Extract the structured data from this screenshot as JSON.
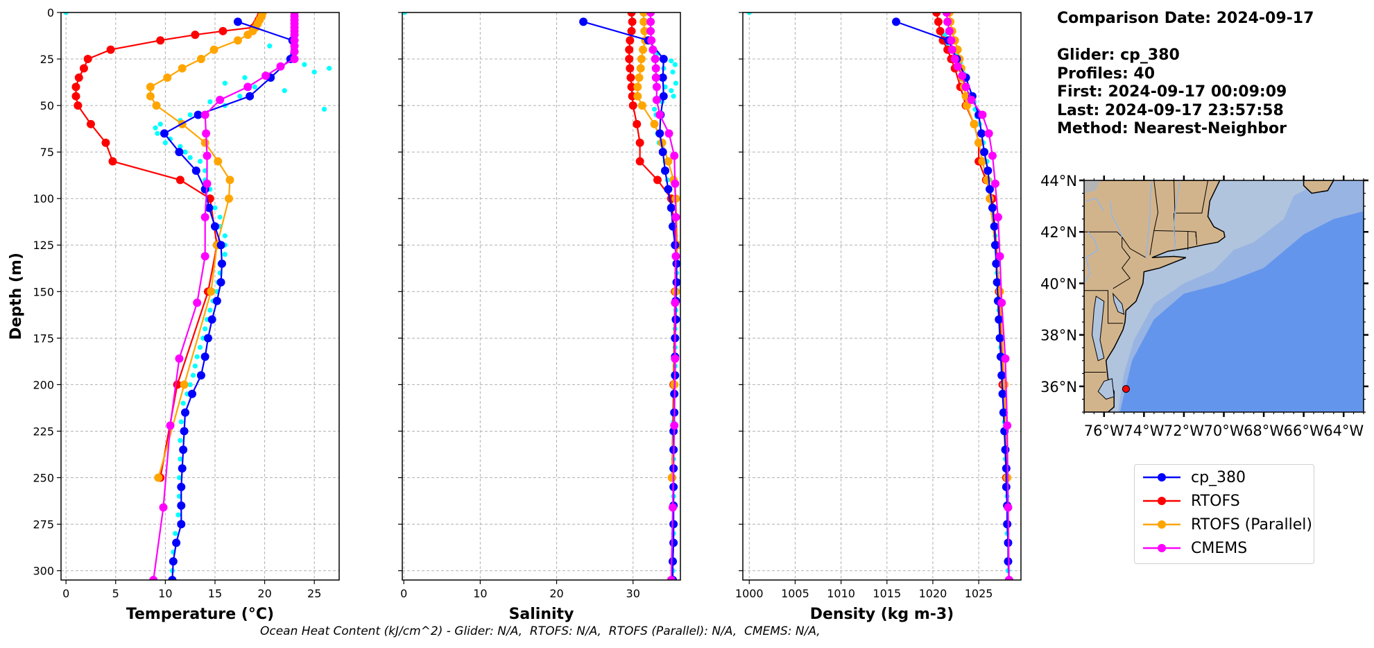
{
  "figure": {
    "info": {
      "comparison_date": "Comparison Date: 2024-09-17",
      "glider": "Glider: cp_380",
      "profiles": "Profiles: 40",
      "first": "First: 2024-09-17 00:09:09",
      "last": "Last: 2024-09-17 23:57:58",
      "method": "Method: Nearest-Neighbor"
    },
    "footer_ohc": "Ocean Heat Content (kJ/cm^2) - Glider: N/A,  RTOFS: N/A,  RTOFS (Parallel): N/A,  CMEMS: N/A,",
    "legend": [
      {
        "label": "cp_380",
        "color": "#0000ff"
      },
      {
        "label": "RTOFS",
        "color": "#ff0000"
      },
      {
        "label": "RTOFS (Parallel)",
        "color": "#ffa500"
      },
      {
        "label": "CMEMS",
        "color": "#ff00ff"
      }
    ],
    "scatter_color": "#00ffff"
  },
  "chart_data": [
    {
      "type": "line",
      "title": "",
      "xlabel": "Temperature (°C)",
      "ylabel": "Depth (m)",
      "xlim": [
        -0.5,
        27.5
      ],
      "ylim": [
        305,
        0
      ],
      "xticks": [
        0,
        5,
        10,
        15,
        20,
        25
      ],
      "yticks": [
        0,
        25,
        50,
        75,
        100,
        125,
        150,
        175,
        200,
        225,
        250,
        275,
        300
      ],
      "grid": true,
      "series": [
        {
          "name": "cp_380",
          "depth": [
            5,
            15,
            25,
            35,
            45,
            55,
            65,
            75,
            85,
            95,
            105,
            115,
            125,
            135,
            145,
            155,
            165,
            175,
            185,
            195,
            205,
            215,
            225,
            235,
            245,
            255,
            265,
            275,
            285,
            295,
            305
          ],
          "values": [
            17.3,
            22.8,
            22.6,
            20.6,
            18.5,
            13.3,
            9.9,
            11.4,
            13.1,
            14.0,
            14.4,
            15.0,
            15.6,
            15.7,
            15.6,
            15.2,
            14.7,
            14.3,
            14.0,
            13.6,
            12.7,
            12.0,
            11.9,
            11.8,
            11.7,
            11.6,
            11.6,
            11.6,
            11.1,
            10.8,
            10.7
          ]
        },
        {
          "name": "RTOFS",
          "depth": [
            0,
            2,
            4,
            6,
            8,
            10,
            12,
            15,
            20,
            25,
            30,
            35,
            40,
            45,
            50,
            60,
            70,
            80,
            90,
            100,
            125,
            150,
            200,
            250
          ],
          "values": [
            19.7,
            19.6,
            19.4,
            19.2,
            18.9,
            15.8,
            13.0,
            9.5,
            4.5,
            2.2,
            1.8,
            1.3,
            1.0,
            1.0,
            1.2,
            2.5,
            4.0,
            4.7,
            11.5,
            14.5,
            15.2,
            14.3,
            11.2,
            9.5
          ]
        },
        {
          "name": "RTOFS (Parallel)",
          "depth": [
            0,
            2,
            4,
            6,
            8,
            10,
            12,
            15,
            20,
            25,
            30,
            35,
            40,
            45,
            50,
            60,
            70,
            80,
            90,
            100,
            125,
            150,
            200,
            250
          ],
          "values": [
            19.8,
            19.7,
            19.5,
            19.3,
            19.1,
            18.8,
            18.3,
            17.3,
            14.9,
            13.6,
            11.7,
            10.2,
            8.5,
            8.5,
            9.1,
            11.7,
            14.0,
            15.3,
            16.5,
            16.4,
            15.2,
            14.6,
            11.9,
            9.3
          ]
        },
        {
          "name": "CMEMS",
          "depth": [
            0,
            2,
            4,
            6,
            8,
            10,
            12,
            15,
            18,
            21,
            25,
            29,
            34,
            40,
            47,
            55,
            65,
            77,
            92,
            110,
            131,
            156,
            186,
            222,
            266,
            305
          ],
          "values": [
            23.0,
            23.0,
            23.0,
            23.0,
            23.0,
            23.0,
            23.0,
            23.0,
            23.0,
            23.0,
            23.0,
            21.6,
            20.1,
            18.3,
            15.5,
            14.0,
            14.1,
            14.2,
            14.2,
            14.0,
            14.0,
            13.2,
            11.4,
            10.5,
            9.8,
            8.8
          ]
        }
      ],
      "scatter": {
        "name": "glider raw",
        "depth": [
          0,
          18,
          22,
          28,
          30,
          32,
          35,
          38,
          40,
          42,
          45,
          48,
          50,
          52,
          55,
          58,
          60,
          62,
          65,
          68,
          70,
          72,
          75,
          78,
          80,
          85,
          90,
          95,
          100,
          105,
          110,
          115,
          120,
          125,
          130,
          135,
          140,
          145,
          150,
          155,
          160,
          165,
          170,
          175,
          180,
          185,
          190,
          195,
          200,
          205,
          210,
          220,
          230,
          240,
          250,
          260,
          270,
          280,
          290,
          300
        ],
        "values": [
          0,
          20.5,
          23.0,
          24.0,
          26.5,
          25.0,
          18.0,
          16.0,
          19.0,
          22.0,
          17.5,
          14.5,
          16.0,
          26.0,
          12.5,
          11.5,
          9.5,
          9.0,
          9.2,
          10.5,
          10.0,
          11.5,
          12.0,
          12.5,
          13.5,
          14.0,
          14.0,
          14.5,
          14.5,
          15.0,
          15.5,
          15.5,
          16.0,
          16.0,
          16.0,
          15.5,
          15.5,
          15.3,
          15.2,
          14.8,
          14.5,
          14.2,
          14.0,
          13.8,
          13.5,
          13.2,
          13.0,
          12.8,
          12.5,
          12.2,
          11.8,
          11.6,
          11.5,
          11.5,
          11.4,
          11.4,
          11.3,
          11.0,
          10.8,
          10.7
        ]
      }
    },
    {
      "type": "line",
      "title": "",
      "xlabel": "Salinity",
      "ylabel": "",
      "xlim": [
        -0.2,
        36.2
      ],
      "ylim": [
        305,
        0
      ],
      "xticks": [
        0,
        10,
        20,
        30
      ],
      "yticks": [
        0,
        25,
        50,
        75,
        100,
        125,
        150,
        175,
        200,
        225,
        250,
        275,
        300
      ],
      "grid": true,
      "series": [
        {
          "name": "cp_380",
          "depth": [
            5,
            15,
            25,
            35,
            45,
            55,
            65,
            75,
            85,
            95,
            105,
            115,
            125,
            135,
            145,
            155,
            165,
            175,
            185,
            195,
            205,
            215,
            225,
            235,
            245,
            255,
            265,
            275,
            285,
            295,
            305
          ],
          "values": [
            23.5,
            32.0,
            34.0,
            33.9,
            34.0,
            33.6,
            33.5,
            33.9,
            34.2,
            34.6,
            35.0,
            35.2,
            35.5,
            35.7,
            35.7,
            35.6,
            35.6,
            35.5,
            35.5,
            35.5,
            35.4,
            35.4,
            35.3,
            35.3,
            35.3,
            35.3,
            35.3,
            35.3,
            35.3,
            35.2,
            35.2
          ]
        },
        {
          "name": "RTOFS",
          "depth": [
            0,
            5,
            10,
            15,
            20,
            25,
            30,
            35,
            40,
            45,
            50,
            60,
            70,
            80,
            90,
            100,
            125,
            150,
            200,
            250
          ],
          "values": [
            29.8,
            29.9,
            29.8,
            29.6,
            29.5,
            29.5,
            29.6,
            29.7,
            29.8,
            29.9,
            30.0,
            30.5,
            30.9,
            30.9,
            33.2,
            35.0,
            35.6,
            35.5,
            35.3,
            35.1
          ]
        },
        {
          "name": "RTOFS (Parallel)",
          "depth": [
            0,
            5,
            10,
            15,
            20,
            25,
            30,
            35,
            40,
            45,
            50,
            60,
            70,
            80,
            90,
            100,
            125,
            150,
            200,
            250
          ],
          "values": [
            31.4,
            31.4,
            31.5,
            31.6,
            31.3,
            31.1,
            31.0,
            30.8,
            30.6,
            30.6,
            31.2,
            32.8,
            33.8,
            34.6,
            35.3,
            35.6,
            35.8,
            35.6,
            35.4,
            35.1
          ]
        },
        {
          "name": "CMEMS",
          "depth": [
            0,
            5,
            10,
            15,
            20,
            25,
            30,
            35,
            40,
            47,
            55,
            65,
            77,
            92,
            110,
            131,
            156,
            186,
            222,
            266,
            305
          ],
          "values": [
            32.3,
            32.3,
            32.3,
            32.4,
            32.6,
            32.9,
            33.0,
            33.0,
            33.1,
            33.1,
            33.5,
            34.7,
            35.4,
            35.5,
            35.6,
            35.6,
            35.5,
            35.5,
            35.4,
            35.2,
            35.0
          ]
        }
      ],
      "scatter": {
        "name": "glider raw",
        "depth": [
          0,
          15,
          22,
          26,
          28,
          30,
          32,
          35,
          38,
          40,
          42,
          45,
          48,
          52,
          55,
          60,
          65,
          70,
          75,
          80,
          90,
          100,
          110,
          120,
          130,
          140,
          150,
          160,
          170,
          180,
          190,
          200,
          220,
          240,
          260,
          280,
          300
        ],
        "values": [
          0.1,
          32.3,
          33.2,
          35.0,
          35.5,
          34.0,
          35.2,
          33.5,
          35.6,
          34.2,
          35.0,
          35.3,
          33.8,
          32.8,
          33.0,
          32.9,
          33.2,
          33.4,
          34.0,
          34.2,
          34.5,
          35.0,
          35.4,
          35.6,
          35.7,
          35.7,
          35.6,
          35.6,
          35.5,
          35.5,
          35.5,
          35.4,
          35.3,
          35.3,
          35.3,
          35.3,
          35.2
        ]
      }
    },
    {
      "type": "line",
      "title": "",
      "xlabel": "Density (kg m-3)",
      "ylabel": "",
      "xlim": [
        999.3,
        1029.6
      ],
      "ylim": [
        305,
        0
      ],
      "xticks": [
        1000,
        1005,
        1010,
        1015,
        1020,
        1025
      ],
      "yticks": [
        0,
        25,
        50,
        75,
        100,
        125,
        150,
        175,
        200,
        225,
        250,
        275,
        300
      ],
      "grid": true,
      "series": [
        {
          "name": "cp_380",
          "depth": [
            5,
            15,
            25,
            35,
            45,
            55,
            65,
            75,
            85,
            95,
            105,
            115,
            125,
            135,
            145,
            155,
            165,
            175,
            185,
            195,
            205,
            215,
            225,
            235,
            245,
            255,
            265,
            275,
            285,
            295,
            305
          ],
          "values": [
            1016.0,
            1021.7,
            1022.6,
            1023.6,
            1024.3,
            1025.0,
            1025.3,
            1025.6,
            1026.0,
            1026.2,
            1026.5,
            1026.7,
            1026.8,
            1026.9,
            1027.0,
            1027.1,
            1027.2,
            1027.3,
            1027.4,
            1027.5,
            1027.6,
            1027.7,
            1027.8,
            1027.9,
            1028.0,
            1028.0,
            1028.1,
            1028.1,
            1028.2,
            1028.2,
            1028.3
          ]
        },
        {
          "name": "RTOFS",
          "depth": [
            0,
            5,
            10,
            15,
            20,
            25,
            30,
            40,
            50,
            60,
            70,
            80,
            90,
            100,
            125,
            150,
            200,
            250
          ],
          "values": [
            1020.4,
            1020.6,
            1020.8,
            1021.1,
            1021.6,
            1022.0,
            1022.4,
            1023.0,
            1023.6,
            1024.5,
            1025.0,
            1025.0,
            1025.8,
            1026.5,
            1026.9,
            1027.2,
            1027.6,
            1028.0
          ]
        },
        {
          "name": "RTOFS (Parallel)",
          "depth": [
            0,
            5,
            10,
            15,
            20,
            25,
            30,
            35,
            40,
            45,
            50,
            60,
            70,
            80,
            90,
            100,
            125,
            150,
            200,
            250
          ],
          "values": [
            1021.8,
            1021.9,
            1022.1,
            1022.4,
            1022.7,
            1022.9,
            1023.1,
            1023.2,
            1023.4,
            1023.6,
            1023.7,
            1024.5,
            1025.0,
            1025.4,
            1025.9,
            1026.2,
            1026.8,
            1027.3,
            1027.8,
            1028.1
          ]
        },
        {
          "name": "CMEMS",
          "depth": [
            0,
            5,
            10,
            15,
            20,
            25,
            29,
            34,
            40,
            47,
            55,
            65,
            77,
            92,
            110,
            131,
            156,
            186,
            222,
            266,
            305
          ],
          "values": [
            1021.5,
            1021.6,
            1021.8,
            1022.0,
            1022.1,
            1022.4,
            1022.7,
            1023.2,
            1023.6,
            1024.2,
            1025.4,
            1026.1,
            1026.5,
            1026.8,
            1027.1,
            1027.3,
            1027.5,
            1027.9,
            1028.1,
            1028.2,
            1028.3
          ]
        }
      ],
      "scatter": {
        "name": "glider raw",
        "depth": [
          0,
          12,
          17,
          22,
          25,
          27,
          30,
          33,
          36,
          40,
          44,
          48,
          50,
          52,
          56,
          60,
          70,
          80,
          90,
          100,
          110,
          120,
          140,
          160,
          180,
          200,
          220,
          240,
          260,
          280,
          300
        ],
        "values": [
          1000.0,
          1021.3,
          1021.5,
          1022.6,
          1022.1,
          1023.0,
          1022.4,
          1023.4,
          1023.1,
          1023.8,
          1024.1,
          1024.5,
          1023.5,
          1024.6,
          1024.8,
          1025.1,
          1025.5,
          1025.9,
          1026.2,
          1026.5,
          1026.7,
          1026.8,
          1027.0,
          1027.2,
          1027.4,
          1027.6,
          1027.8,
          1027.9,
          1028.1,
          1028.1,
          1028.2
        ]
      }
    },
    {
      "type": "map",
      "title": "",
      "lon_range": [
        -77,
        -63
      ],
      "lat_range": [
        35,
        44
      ],
      "xtick_labels": [
        "76°W",
        "74°W",
        "72°W",
        "70°W",
        "68°W",
        "66°W",
        "64°W"
      ],
      "ytick_labels": [
        "44°N",
        "42°N",
        "40°N",
        "38°N",
        "36°N"
      ],
      "xticks": [
        -76,
        -74,
        -72,
        -70,
        -68,
        -66,
        -64
      ],
      "yticks": [
        44,
        42,
        40,
        38,
        36
      ],
      "marker": {
        "lon": -74.9,
        "lat": 35.9,
        "color": "#ff0000"
      },
      "colors": {
        "land": "#d2b48c",
        "shelf": "#b0c4de",
        "slope": "#98b4e2",
        "deep": "#6495ed",
        "rivers": "#97b6e1"
      }
    }
  ]
}
